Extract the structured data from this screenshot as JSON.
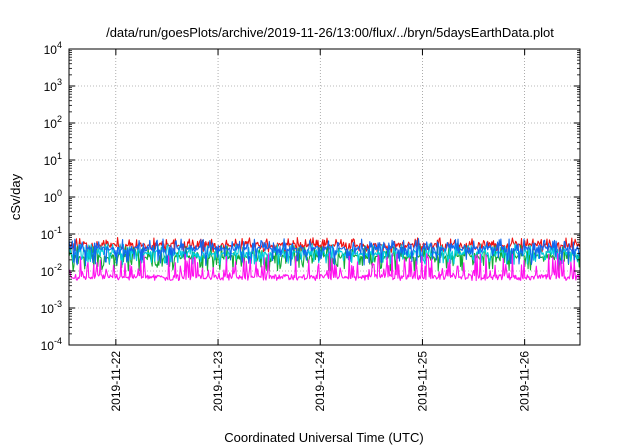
{
  "chart_data": {
    "type": "line",
    "title": "/data/run/goesPlots/archive/2019-11-26/13:00/flux/../bryn/5daysEarthData.plot",
    "xlabel": "Coordinated Universal Time (UTC)",
    "ylabel": "cSv/day",
    "yscale": "log",
    "ylim": [
      0.0001,
      10000
    ],
    "y_ticks": [
      {
        "value": 0.0001,
        "base": "10",
        "exp": "-4"
      },
      {
        "value": 0.001,
        "base": "10",
        "exp": "-3"
      },
      {
        "value": 0.01,
        "base": "10",
        "exp": "-2"
      },
      {
        "value": 0.1,
        "base": "10",
        "exp": "-1"
      },
      {
        "value": 1,
        "base": "10",
        "exp": "0"
      },
      {
        "value": 10,
        "base": "10",
        "exp": "1"
      },
      {
        "value": 100,
        "base": "10",
        "exp": "2"
      },
      {
        "value": 1000,
        "base": "10",
        "exp": "3"
      },
      {
        "value": 10000,
        "base": "10",
        "exp": "4"
      }
    ],
    "xlim": [
      "2019-11-21 13:00",
      "2019-11-26 13:00"
    ],
    "x_ticks": [
      {
        "value": "2019-11-22 00:00",
        "label": "2019-11-22"
      },
      {
        "value": "2019-11-23 00:00",
        "label": "2019-11-23"
      },
      {
        "value": "2019-11-24 00:00",
        "label": "2019-11-24"
      },
      {
        "value": "2019-11-25 00:00",
        "label": "2019-11-25"
      },
      {
        "value": "2019-11-26 00:00",
        "label": "2019-11-26"
      }
    ],
    "grid": true,
    "legend": "none",
    "series": [
      {
        "color": "#ee1111",
        "base": 0.05,
        "spike_low": 0.032,
        "spike_high": 0.08
      },
      {
        "color": "#11aa33",
        "base": 0.024,
        "spike_low": 0.01,
        "spike_high": 0.05
      },
      {
        "color": "#00ccdd",
        "base": 0.03,
        "spike_low": 0.015,
        "spike_high": 0.055
      },
      {
        "color": "#1166ee",
        "base": 0.04,
        "spike_low": 0.014,
        "spike_high": 0.075
      },
      {
        "color": "#ff11ee",
        "base": 0.007,
        "spike_low": 0.0055,
        "spike_high": 0.03
      }
    ],
    "note_on_data": "Each series is a dense time series of roughly 5 days, oscillating between spike_low and spike_high around base."
  }
}
